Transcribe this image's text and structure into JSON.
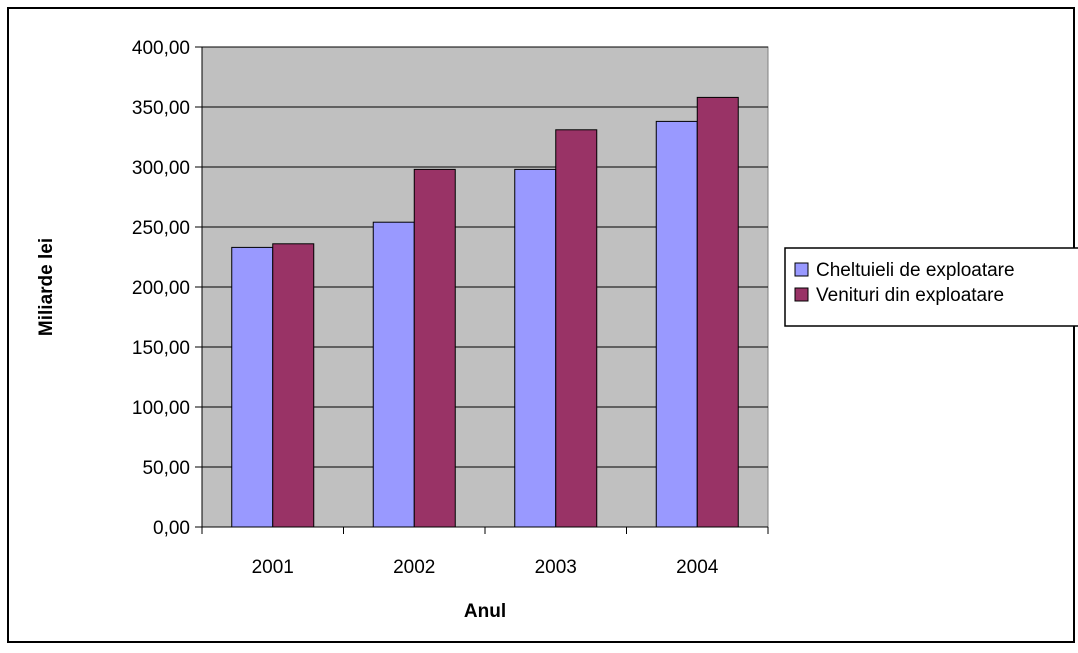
{
  "chart_data": {
    "type": "bar",
    "categories": [
      "2001",
      "2002",
      "2003",
      "2004"
    ],
    "series": [
      {
        "name": "Cheltuieli de exploatare",
        "values": [
          233,
          254,
          298,
          338
        ],
        "color": "#9999ff"
      },
      {
        "name": "Venituri din exploatare",
        "values": [
          236,
          298,
          331,
          358
        ],
        "color": "#993366"
      }
    ],
    "xlabel": "Anul",
    "ylabel": "Miliarde lei",
    "ylim": [
      0,
      400
    ],
    "yticks": [
      0,
      50,
      100,
      150,
      200,
      250,
      300,
      350,
      400
    ],
    "ytick_labels": [
      "0,00",
      "50,00",
      "100,00",
      "150,00",
      "200,00",
      "250,00",
      "300,00",
      "350,00",
      "400,00"
    ],
    "grid": true,
    "plot_background": "#c0c0c0",
    "legend_position": "right"
  }
}
